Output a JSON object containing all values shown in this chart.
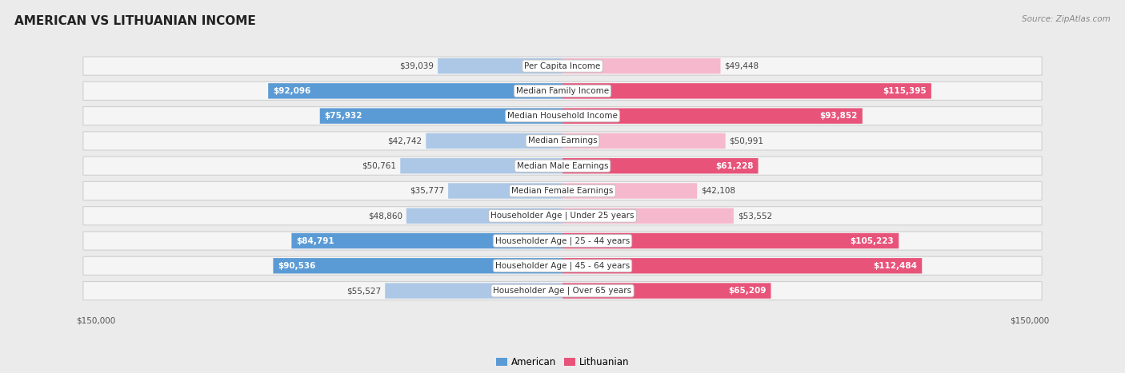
{
  "title": "AMERICAN VS LITHUANIAN INCOME",
  "source": "Source: ZipAtlas.com",
  "categories": [
    "Per Capita Income",
    "Median Family Income",
    "Median Household Income",
    "Median Earnings",
    "Median Male Earnings",
    "Median Female Earnings",
    "Householder Age | Under 25 years",
    "Householder Age | 25 - 44 years",
    "Householder Age | 45 - 64 years",
    "Householder Age | Over 65 years"
  ],
  "american_values": [
    39039,
    92096,
    75932,
    42742,
    50761,
    35777,
    48860,
    84791,
    90536,
    55527
  ],
  "lithuanian_values": [
    49448,
    115395,
    93852,
    50991,
    61228,
    42108,
    53552,
    105223,
    112484,
    65209
  ],
  "american_labels": [
    "$39,039",
    "$92,096",
    "$75,932",
    "$42,742",
    "$50,761",
    "$35,777",
    "$48,860",
    "$84,791",
    "$90,536",
    "$55,527"
  ],
  "lithuanian_labels": [
    "$49,448",
    "$115,395",
    "$93,852",
    "$50,991",
    "$61,228",
    "$42,108",
    "$53,552",
    "$105,223",
    "$112,484",
    "$65,209"
  ],
  "max_value": 150000,
  "american_color_light": "#adc8e6",
  "american_color_dark": "#5b9bd5",
  "lithuanian_color_light": "#f5b8cd",
  "lithuanian_color_dark": "#e8537a",
  "background_color": "#ebebeb",
  "row_bg_color": "#f5f5f5",
  "large_threshold_am": 60000,
  "large_threshold_li": 60000,
  "axis_label": "$150,000",
  "title_fontsize": 11,
  "source_fontsize": 7.5,
  "category_fontsize": 7.5,
  "value_fontsize": 7.5,
  "legend_fontsize": 8.5
}
